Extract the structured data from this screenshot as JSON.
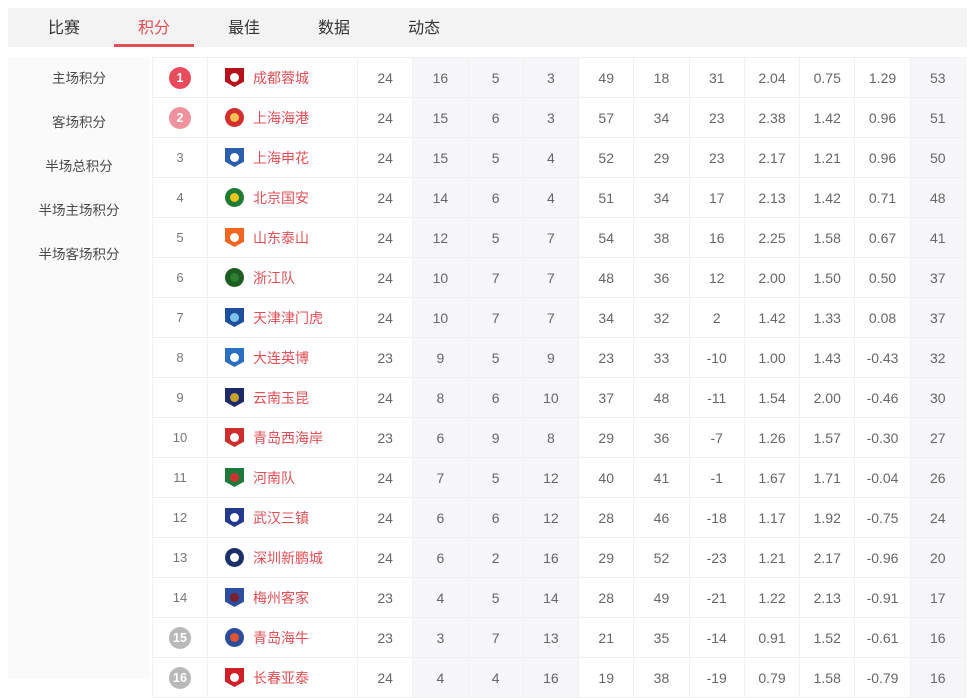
{
  "tabs": [
    {
      "key": "matches",
      "label": "比赛",
      "active": false
    },
    {
      "key": "standings",
      "label": "积分",
      "active": true
    },
    {
      "key": "best",
      "label": "最佳",
      "active": false
    },
    {
      "key": "stats",
      "label": "数据",
      "active": false
    },
    {
      "key": "news",
      "label": "动态",
      "active": false
    }
  ],
  "sidebar": {
    "items": [
      {
        "key": "home-points",
        "label": "主场积分"
      },
      {
        "key": "away-points",
        "label": "客场积分"
      },
      {
        "key": "half-total-points",
        "label": "半场总积分"
      },
      {
        "key": "half-home-points",
        "label": "半场主场积分"
      },
      {
        "key": "half-away-points",
        "label": "半场客场积分"
      }
    ]
  },
  "colors": {
    "accent_red": "#e14f55",
    "badge_top1": "#e94b5c",
    "badge_top2": "#f0929e",
    "badge_bottom": "#b9b9b9",
    "shaded_col_bg": "#f7f7fa",
    "tabbar_bg": "#f3f3f3",
    "sidebar_bg": "#fafafa",
    "border": "#f0f0f0",
    "num_text": "#666666"
  },
  "standings": {
    "stat_columns": [
      "played",
      "wins",
      "draws",
      "losses",
      "goals_for",
      "goals_against",
      "goal_diff",
      "gf_per_game",
      "ga_per_game",
      "gd_per_game",
      "points"
    ],
    "shaded_columns": [
      "wins",
      "draws",
      "losses",
      "points"
    ],
    "rows": [
      {
        "rank": "1",
        "badge": "red",
        "team": "成都蓉城",
        "logo": {
          "shape": "shield",
          "primary": "#b5121b",
          "secondary": "#ffffff"
        },
        "stats": [
          "24",
          "16",
          "5",
          "3",
          "49",
          "18",
          "31",
          "2.04",
          "0.75",
          "1.29",
          "53"
        ]
      },
      {
        "rank": "2",
        "badge": "pink",
        "team": "上海海港",
        "logo": {
          "shape": "circle",
          "primary": "#d32f2f",
          "secondary": "#f2c14e"
        },
        "stats": [
          "24",
          "15",
          "6",
          "3",
          "57",
          "34",
          "23",
          "2.38",
          "1.42",
          "0.96",
          "51"
        ]
      },
      {
        "rank": "3",
        "badge": "none",
        "team": "上海申花",
        "logo": {
          "shape": "shield",
          "primary": "#2b5fad",
          "secondary": "#ffffff"
        },
        "stats": [
          "24",
          "15",
          "5",
          "4",
          "52",
          "29",
          "23",
          "2.17",
          "1.21",
          "0.96",
          "50"
        ]
      },
      {
        "rank": "4",
        "badge": "none",
        "team": "北京国安",
        "logo": {
          "shape": "circle",
          "primary": "#1e7a34",
          "secondary": "#f0c419"
        },
        "stats": [
          "24",
          "14",
          "6",
          "4",
          "51",
          "34",
          "17",
          "2.13",
          "1.42",
          "0.71",
          "48"
        ]
      },
      {
        "rank": "5",
        "badge": "none",
        "team": "山东泰山",
        "logo": {
          "shape": "shield",
          "primary": "#f26522",
          "secondary": "#ffffff"
        },
        "stats": [
          "24",
          "12",
          "5",
          "7",
          "54",
          "38",
          "16",
          "2.25",
          "1.58",
          "0.67",
          "41"
        ]
      },
      {
        "rank": "6",
        "badge": "none",
        "team": "浙江队",
        "logo": {
          "shape": "circle",
          "primary": "#1b5e20",
          "secondary": "#2e7d32"
        },
        "stats": [
          "24",
          "10",
          "7",
          "7",
          "48",
          "36",
          "12",
          "2.00",
          "1.50",
          "0.50",
          "37"
        ]
      },
      {
        "rank": "7",
        "badge": "none",
        "team": "天津津门虎",
        "logo": {
          "shape": "shield",
          "primary": "#1d4f9c",
          "secondary": "#7ec3e8"
        },
        "stats": [
          "24",
          "10",
          "7",
          "7",
          "34",
          "32",
          "2",
          "1.42",
          "1.33",
          "0.08",
          "37"
        ]
      },
      {
        "rank": "8",
        "badge": "none",
        "team": "大连英博",
        "logo": {
          "shape": "shield",
          "primary": "#2a6fc0",
          "secondary": "#ffffff"
        },
        "stats": [
          "23",
          "9",
          "5",
          "9",
          "23",
          "33",
          "-10",
          "1.00",
          "1.43",
          "-0.43",
          "32"
        ]
      },
      {
        "rank": "9",
        "badge": "none",
        "team": "云南玉昆",
        "logo": {
          "shape": "shield",
          "primary": "#1b2a6b",
          "secondary": "#c9a227"
        },
        "stats": [
          "24",
          "8",
          "6",
          "10",
          "37",
          "48",
          "-11",
          "1.54",
          "2.00",
          "-0.46",
          "30"
        ]
      },
      {
        "rank": "10",
        "badge": "none",
        "team": "青岛西海岸",
        "logo": {
          "shape": "shield",
          "primary": "#cf2e2e",
          "secondary": "#ffffff"
        },
        "stats": [
          "23",
          "6",
          "9",
          "8",
          "29",
          "36",
          "-7",
          "1.26",
          "1.57",
          "-0.30",
          "27"
        ]
      },
      {
        "rank": "11",
        "badge": "none",
        "team": "河南队",
        "logo": {
          "shape": "shield",
          "primary": "#1b7a3a",
          "secondary": "#d32f2f"
        },
        "stats": [
          "24",
          "7",
          "5",
          "12",
          "40",
          "41",
          "-1",
          "1.67",
          "1.71",
          "-0.04",
          "26"
        ]
      },
      {
        "rank": "12",
        "badge": "none",
        "team": "武汉三镇",
        "logo": {
          "shape": "shield",
          "primary": "#243a8f",
          "secondary": "#ffffff"
        },
        "stats": [
          "24",
          "6",
          "6",
          "12",
          "28",
          "46",
          "-18",
          "1.17",
          "1.92",
          "-0.75",
          "24"
        ]
      },
      {
        "rank": "13",
        "badge": "none",
        "team": "深圳新鹏城",
        "logo": {
          "shape": "circle",
          "primary": "#1b2f6b",
          "secondary": "#ffffff"
        },
        "stats": [
          "24",
          "6",
          "2",
          "16",
          "29",
          "52",
          "-23",
          "1.21",
          "2.17",
          "-0.96",
          "20"
        ]
      },
      {
        "rank": "14",
        "badge": "none",
        "team": "梅州客家",
        "logo": {
          "shape": "shield",
          "primary": "#2b4ea0",
          "secondary": "#7b1f2b"
        },
        "stats": [
          "23",
          "4",
          "5",
          "14",
          "28",
          "49",
          "-21",
          "1.22",
          "2.13",
          "-0.91",
          "17"
        ]
      },
      {
        "rank": "15",
        "badge": "gray",
        "team": "青岛海牛",
        "logo": {
          "shape": "circle",
          "primary": "#2a4da0",
          "secondary": "#e0562a"
        },
        "stats": [
          "23",
          "3",
          "7",
          "13",
          "21",
          "35",
          "-14",
          "0.91",
          "1.52",
          "-0.61",
          "16"
        ]
      },
      {
        "rank": "16",
        "badge": "gray",
        "team": "长春亚泰",
        "logo": {
          "shape": "shield",
          "primary": "#d01f26",
          "secondary": "#ffffff"
        },
        "stats": [
          "24",
          "4",
          "4",
          "16",
          "19",
          "38",
          "-19",
          "0.79",
          "1.58",
          "-0.79",
          "16"
        ]
      }
    ]
  }
}
